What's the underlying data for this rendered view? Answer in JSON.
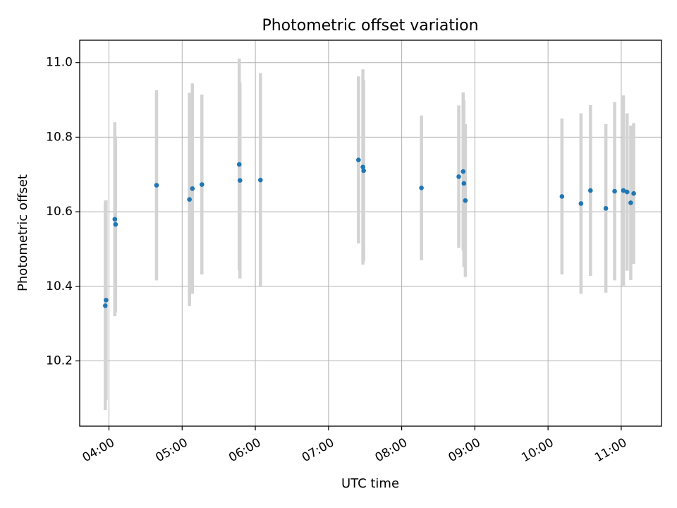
{
  "chart_data": {
    "type": "scatter",
    "title": "Photometric offset variation",
    "xlabel": "UTC time",
    "ylabel": "Photometric offset",
    "x_unit": "hours UTC",
    "xlim": [
      3.6,
      11.55
    ],
    "ylim": [
      10.025,
      11.06
    ],
    "x_ticks": [
      {
        "value": 4,
        "label": "04:00"
      },
      {
        "value": 5,
        "label": "05:00"
      },
      {
        "value": 6,
        "label": "06:00"
      },
      {
        "value": 7,
        "label": "07:00"
      },
      {
        "value": 8,
        "label": "08:00"
      },
      {
        "value": 9,
        "label": "09:00"
      },
      {
        "value": 10,
        "label": "10:00"
      },
      {
        "value": 11,
        "label": "11:00"
      }
    ],
    "y_ticks": [
      {
        "value": 10.2,
        "label": "10.2"
      },
      {
        "value": 10.4,
        "label": "10.4"
      },
      {
        "value": 10.6,
        "label": "10.6"
      },
      {
        "value": 10.8,
        "label": "10.8"
      },
      {
        "value": 11.0,
        "label": "11.0"
      }
    ],
    "grid": true,
    "marker_color": "#1f77b4",
    "errorbar_color": "#d3d3d3",
    "points": [
      {
        "x": 3.95,
        "y": 10.348,
        "ylow": 10.068,
        "yhigh": 10.628
      },
      {
        "x": 3.96,
        "y": 10.363,
        "ylow": 10.095,
        "yhigh": 10.631
      },
      {
        "x": 4.08,
        "y": 10.58,
        "ylow": 10.32,
        "yhigh": 10.84
      },
      {
        "x": 4.09,
        "y": 10.566,
        "ylow": 10.33,
        "yhigh": 10.802
      },
      {
        "x": 4.65,
        "y": 10.671,
        "ylow": 10.416,
        "yhigh": 10.926
      },
      {
        "x": 5.1,
        "y": 10.633,
        "ylow": 10.347,
        "yhigh": 10.919
      },
      {
        "x": 5.14,
        "y": 10.662,
        "ylow": 10.38,
        "yhigh": 10.944
      },
      {
        "x": 5.27,
        "y": 10.673,
        "ylow": 10.432,
        "yhigh": 10.914
      },
      {
        "x": 5.78,
        "y": 10.727,
        "ylow": 10.443,
        "yhigh": 11.011
      },
      {
        "x": 5.79,
        "y": 10.684,
        "ylow": 10.421,
        "yhigh": 10.947
      },
      {
        "x": 6.07,
        "y": 10.685,
        "ylow": 10.398,
        "yhigh": 10.972
      },
      {
        "x": 7.41,
        "y": 10.739,
        "ylow": 10.515,
        "yhigh": 10.963
      },
      {
        "x": 7.47,
        "y": 10.72,
        "ylow": 10.458,
        "yhigh": 10.982
      },
      {
        "x": 7.48,
        "y": 10.71,
        "ylow": 10.467,
        "yhigh": 10.953
      },
      {
        "x": 8.27,
        "y": 10.664,
        "ylow": 10.47,
        "yhigh": 10.858
      },
      {
        "x": 8.78,
        "y": 10.694,
        "ylow": 10.503,
        "yhigh": 10.885
      },
      {
        "x": 8.84,
        "y": 10.708,
        "ylow": 10.496,
        "yhigh": 10.92
      },
      {
        "x": 8.85,
        "y": 10.676,
        "ylow": 10.452,
        "yhigh": 10.9
      },
      {
        "x": 8.87,
        "y": 10.63,
        "ylow": 10.425,
        "yhigh": 10.835
      },
      {
        "x": 10.19,
        "y": 10.641,
        "ylow": 10.432,
        "yhigh": 10.85
      },
      {
        "x": 10.45,
        "y": 10.622,
        "ylow": 10.38,
        "yhigh": 10.864
      },
      {
        "x": 10.58,
        "y": 10.657,
        "ylow": 10.428,
        "yhigh": 10.886
      },
      {
        "x": 10.79,
        "y": 10.609,
        "ylow": 10.383,
        "yhigh": 10.835
      },
      {
        "x": 10.91,
        "y": 10.655,
        "ylow": 10.416,
        "yhigh": 10.894
      },
      {
        "x": 11.03,
        "y": 10.657,
        "ylow": 10.402,
        "yhigh": 10.912
      },
      {
        "x": 11.08,
        "y": 10.653,
        "ylow": 10.442,
        "yhigh": 10.864
      },
      {
        "x": 11.13,
        "y": 10.624,
        "ylow": 10.417,
        "yhigh": 10.831
      },
      {
        "x": 11.17,
        "y": 10.649,
        "ylow": 10.46,
        "yhigh": 10.838
      }
    ]
  }
}
